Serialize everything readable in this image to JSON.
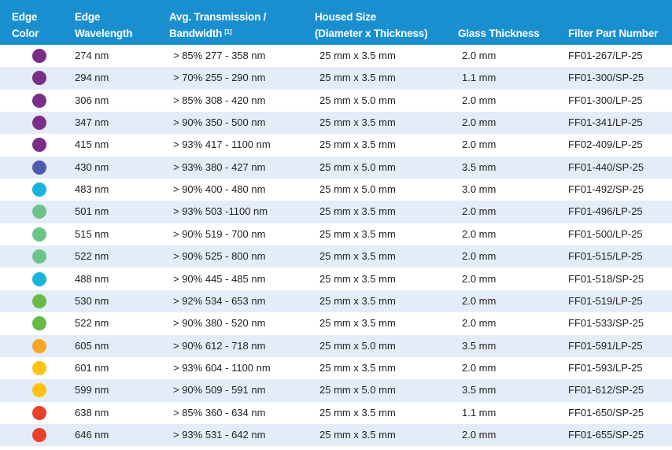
{
  "table": {
    "headers": [
      {
        "lines": [
          "Edge",
          "Color"
        ]
      },
      {
        "lines": [
          "Edge",
          "Wavelength"
        ]
      },
      {
        "lines": [
          "Avg. Transmission /",
          "Bandwidth"
        ],
        "sup": "[1]"
      },
      {
        "lines": [
          "Housed Size",
          "(Diameter x Thickness)"
        ]
      },
      {
        "lines": [
          "Glass Thickness"
        ]
      },
      {
        "lines": [
          "Filter Part Number"
        ]
      }
    ],
    "rows": [
      {
        "color": "#7a2e8a",
        "cells": [
          "274 nm",
          "> 85% 277 - 358 nm",
          "25 mm x 3.5 mm",
          "2.0 mm",
          "FF01-267/LP-25"
        ]
      },
      {
        "color": "#7a2e8a",
        "cells": [
          "294 nm",
          "> 70% 255 - 290 nm",
          "25 mm x 3.5 mm",
          "1.1 mm",
          "FF01-300/SP-25"
        ]
      },
      {
        "color": "#7a2e8a",
        "cells": [
          "306 nm",
          "> 85% 308 - 420 nm",
          "25 mm x 5.0 mm",
          "2.0 mm",
          "FF01-300/LP-25"
        ]
      },
      {
        "color": "#7a2e8a",
        "cells": [
          "347 nm",
          "> 90% 350 - 500 nm",
          "25 mm x 3.5 mm",
          "2.0 mm",
          "FF01-341/LP-25"
        ]
      },
      {
        "color": "#7a2e8a",
        "cells": [
          "415 nm",
          "> 93% 417 - 1100 nm",
          "25 mm x 3.5 mm",
          "2.0 mm",
          "FF02-409/LP-25"
        ]
      },
      {
        "color": "#4f5bb0",
        "cells": [
          "430 nm",
          "> 93% 380 - 427 nm",
          "25 mm x 5.0 mm",
          "3.5 mm",
          "FF01-440/SP-25"
        ]
      },
      {
        "color": "#18b4dc",
        "cells": [
          "483 nm",
          "> 90% 400 - 480 nm",
          "25 mm x 5.0 mm",
          "3.0 mm",
          "FF01-492/SP-25"
        ]
      },
      {
        "color": "#6cc48a",
        "cells": [
          "501 nm",
          "> 93% 503 -1100 nm",
          "25 mm x 3.5 mm",
          "2.0 mm",
          "FF01-496/LP-25"
        ]
      },
      {
        "color": "#6cc48a",
        "cells": [
          "515 nm",
          "> 90% 519 - 700 nm",
          "25 mm x 3.5 mm",
          "2.0 mm",
          "FF01-500/LP-25"
        ]
      },
      {
        "color": "#6cc48a",
        "cells": [
          "522 nm",
          "> 90% 525 - 800 nm",
          "25 mm x 3.5 mm",
          "2.0 mm",
          "FF01-515/LP-25"
        ]
      },
      {
        "color": "#18b4dc",
        "cells": [
          "488 nm",
          "> 90% 445 - 485 nm",
          "25 mm x 3.5 mm",
          "2.0 mm",
          "FF01-518/SP-25"
        ]
      },
      {
        "color": "#66bb44",
        "cells": [
          "530 nm",
          "> 92% 534 - 653 nm",
          "25 mm x 3.5 mm",
          "2.0 mm",
          "FF01-519/LP-25"
        ]
      },
      {
        "color": "#66bb44",
        "cells": [
          "522 nm",
          "> 90% 380 - 520 nm",
          "25 mm x 3.5 mm",
          "2.0 mm",
          "FF01-533/SP-25"
        ]
      },
      {
        "color": "#f6a623",
        "cells": [
          "605 nm",
          "> 90% 612 - 718 nm",
          "25 mm x 5.0 mm",
          "3.5 mm",
          "FF01-591/LP-25"
        ]
      },
      {
        "color": "#ffc20e",
        "cells": [
          "601 nm",
          "> 93% 604 - 1100 nm",
          "25 mm x 3.5 mm",
          "2.0 mm",
          "FF01-593/LP-25"
        ]
      },
      {
        "color": "#ffc20e",
        "cells": [
          "599 nm",
          "> 90% 509 - 591 nm",
          "25 mm x 5.0 mm",
          "3.5 mm",
          "FF01-612/SP-25"
        ]
      },
      {
        "color": "#e8412c",
        "cells": [
          "638 nm",
          "> 85% 360 - 634 nm",
          "25 mm x 3.5 mm",
          "1.1 mm",
          "FF01-650/SP-25"
        ]
      },
      {
        "color": "#e8412c",
        "cells": [
          "646 nm",
          "> 93% 531 - 642 nm",
          "25 mm x 3.5 mm",
          "2.0 mm",
          "FF01-655/SP-25"
        ]
      }
    ]
  }
}
